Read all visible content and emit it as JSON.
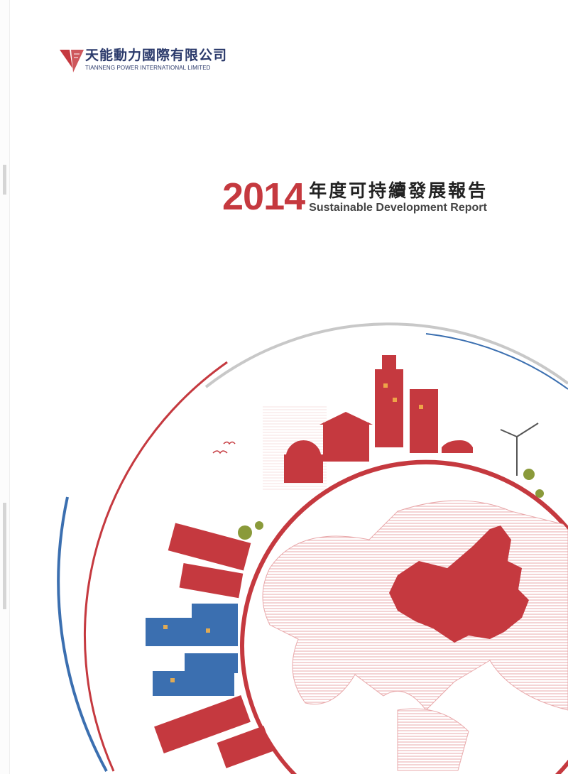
{
  "company": {
    "name_cn": "天能動力國際有限公司",
    "name_en": "TIANNENG POWER INTERNATIONAL LIMITED"
  },
  "report": {
    "year": "2014",
    "title_cn": "年度可持續發展報告",
    "title_en": "Sustainable Development Report"
  },
  "colors": {
    "brand_red": "#c5393f",
    "navy": "#2b3a6b",
    "blue": "#3b6fb0",
    "gray_arc": "#c8c8c8"
  },
  "illustration": {
    "subject": "globe-with-city-skyline",
    "highlight": "china-map"
  }
}
